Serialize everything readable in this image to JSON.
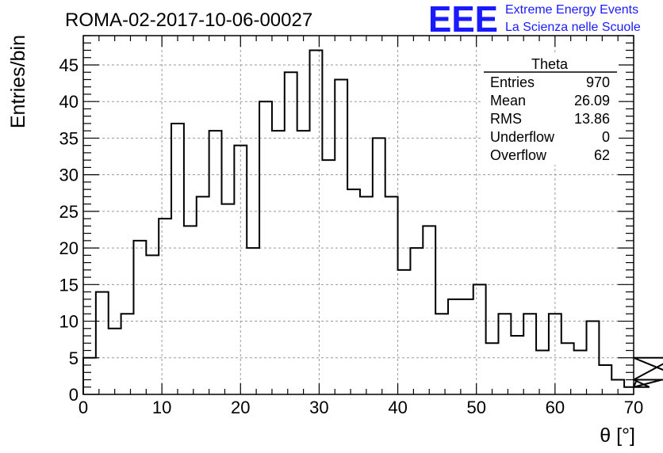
{
  "title": "ROMA-02-2017-10-06-00027",
  "logo": {
    "letters": "EEE",
    "line1": "Extreme Energy Events",
    "line2": "La Scienza nelle Scuole",
    "color": "#1a1aff"
  },
  "stats": {
    "name": "Theta",
    "rows": [
      {
        "label": "Entries",
        "value": "970"
      },
      {
        "label": "Mean",
        "value": "26.09"
      },
      {
        "label": "RMS",
        "value": "13.86"
      },
      {
        "label": "Underflow",
        "value": "0"
      },
      {
        "label": "Overflow",
        "value": "62"
      }
    ]
  },
  "chart_data": {
    "type": "bar",
    "style": "step-histogram",
    "xlabel": "θ [°]",
    "ylabel": "Entries/bin",
    "xlim": [
      0,
      70
    ],
    "ylim": [
      0,
      49
    ],
    "xticks": [
      0,
      10,
      20,
      30,
      40,
      50,
      60,
      70
    ],
    "yticks": [
      0,
      5,
      10,
      15,
      20,
      25,
      30,
      35,
      40,
      45
    ],
    "grid": true,
    "bin_width": 1.6,
    "bin_start": 0,
    "values": [
      5,
      14,
      9,
      11,
      21,
      19,
      24,
      37,
      23,
      27,
      36,
      26,
      34,
      20,
      40,
      36,
      44,
      36,
      47,
      32,
      43,
      28,
      27,
      35,
      27,
      17,
      20,
      23,
      11,
      13,
      13,
      15,
      7,
      11,
      8,
      11,
      6,
      11,
      7,
      6,
      10,
      4,
      2,
      1,
      2,
      1,
      2,
      5,
      2
    ]
  }
}
